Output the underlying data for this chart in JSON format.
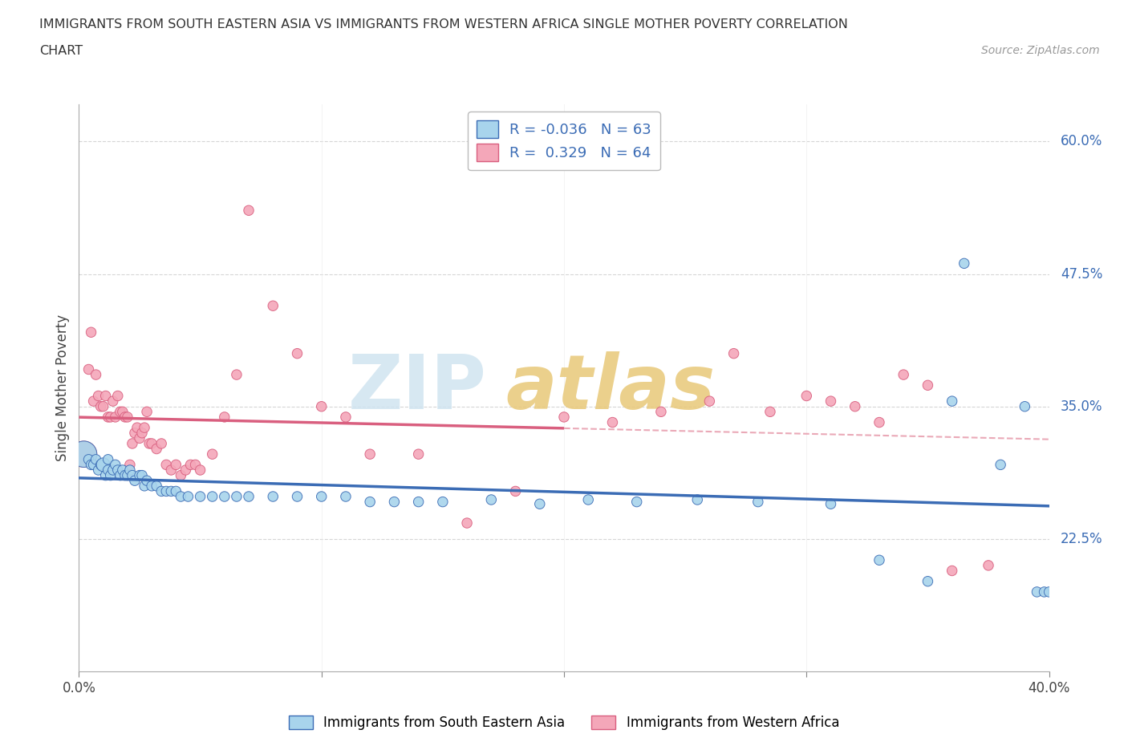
{
  "title_line1": "IMMIGRANTS FROM SOUTH EASTERN ASIA VS IMMIGRANTS FROM WESTERN AFRICA SINGLE MOTHER POVERTY CORRELATION",
  "title_line2": "CHART",
  "source": "Source: ZipAtlas.com",
  "ylabel": "Single Mother Poverty",
  "xlim": [
    0.0,
    0.4
  ],
  "ylim": [
    0.1,
    0.635
  ],
  "ytick_positions": [
    0.225,
    0.35,
    0.475,
    0.6
  ],
  "ytick_labels": [
    "22.5%",
    "35.0%",
    "47.5%",
    "60.0%"
  ],
  "R_blue": -0.036,
  "N_blue": 63,
  "R_pink": 0.329,
  "N_pink": 64,
  "color_blue": "#A8D4EC",
  "color_pink": "#F4A7B9",
  "line_blue": "#3B6CB5",
  "line_pink": "#D95F7F",
  "line_dashed_color": "#E8A0B0",
  "blue_x": [
    0.002,
    0.004,
    0.005,
    0.006,
    0.007,
    0.008,
    0.009,
    0.01,
    0.011,
    0.012,
    0.012,
    0.013,
    0.014,
    0.015,
    0.016,
    0.017,
    0.018,
    0.019,
    0.02,
    0.021,
    0.022,
    0.023,
    0.025,
    0.026,
    0.027,
    0.028,
    0.03,
    0.032,
    0.034,
    0.036,
    0.038,
    0.04,
    0.042,
    0.045,
    0.05,
    0.055,
    0.06,
    0.065,
    0.07,
    0.08,
    0.09,
    0.1,
    0.11,
    0.12,
    0.13,
    0.14,
    0.15,
    0.17,
    0.19,
    0.21,
    0.23,
    0.255,
    0.28,
    0.31,
    0.33,
    0.35,
    0.36,
    0.365,
    0.38,
    0.39,
    0.395,
    0.398,
    0.4
  ],
  "blue_y": [
    0.305,
    0.3,
    0.295,
    0.295,
    0.3,
    0.29,
    0.295,
    0.295,
    0.285,
    0.29,
    0.3,
    0.285,
    0.29,
    0.295,
    0.29,
    0.285,
    0.29,
    0.285,
    0.285,
    0.29,
    0.285,
    0.28,
    0.285,
    0.285,
    0.275,
    0.28,
    0.275,
    0.275,
    0.27,
    0.27,
    0.27,
    0.27,
    0.265,
    0.265,
    0.265,
    0.265,
    0.265,
    0.265,
    0.265,
    0.265,
    0.265,
    0.265,
    0.265,
    0.26,
    0.26,
    0.26,
    0.26,
    0.262,
    0.258,
    0.262,
    0.26,
    0.262,
    0.26,
    0.258,
    0.205,
    0.185,
    0.355,
    0.485,
    0.295,
    0.35,
    0.175,
    0.175,
    0.175
  ],
  "blue_size": [
    550,
    80,
    80,
    80,
    80,
    80,
    80,
    150,
    80,
    80,
    80,
    80,
    80,
    80,
    80,
    80,
    80,
    80,
    80,
    80,
    80,
    80,
    80,
    80,
    80,
    80,
    80,
    80,
    80,
    80,
    80,
    80,
    80,
    80,
    80,
    80,
    80,
    80,
    80,
    80,
    80,
    80,
    80,
    80,
    80,
    80,
    80,
    80,
    80,
    80,
    80,
    80,
    80,
    80,
    80,
    80,
    80,
    80,
    80,
    80,
    80,
    80,
    80
  ],
  "pink_x": [
    0.002,
    0.004,
    0.005,
    0.006,
    0.007,
    0.008,
    0.009,
    0.01,
    0.011,
    0.012,
    0.013,
    0.014,
    0.015,
    0.016,
    0.017,
    0.018,
    0.019,
    0.02,
    0.021,
    0.022,
    0.023,
    0.024,
    0.025,
    0.026,
    0.027,
    0.028,
    0.029,
    0.03,
    0.032,
    0.034,
    0.036,
    0.038,
    0.04,
    0.042,
    0.044,
    0.046,
    0.048,
    0.05,
    0.055,
    0.06,
    0.065,
    0.07,
    0.08,
    0.09,
    0.1,
    0.11,
    0.12,
    0.14,
    0.16,
    0.18,
    0.2,
    0.22,
    0.24,
    0.26,
    0.27,
    0.285,
    0.3,
    0.31,
    0.32,
    0.33,
    0.34,
    0.35,
    0.36,
    0.375
  ],
  "pink_y": [
    0.305,
    0.385,
    0.42,
    0.355,
    0.38,
    0.36,
    0.35,
    0.35,
    0.36,
    0.34,
    0.34,
    0.355,
    0.34,
    0.36,
    0.345,
    0.345,
    0.34,
    0.34,
    0.295,
    0.315,
    0.325,
    0.33,
    0.32,
    0.325,
    0.33,
    0.345,
    0.315,
    0.315,
    0.31,
    0.315,
    0.295,
    0.29,
    0.295,
    0.285,
    0.29,
    0.295,
    0.295,
    0.29,
    0.305,
    0.34,
    0.38,
    0.535,
    0.445,
    0.4,
    0.35,
    0.34,
    0.305,
    0.305,
    0.24,
    0.27,
    0.34,
    0.335,
    0.345,
    0.355,
    0.4,
    0.345,
    0.36,
    0.355,
    0.35,
    0.335,
    0.38,
    0.37,
    0.195,
    0.2
  ],
  "pink_size": [
    550,
    80,
    80,
    80,
    80,
    80,
    80,
    80,
    80,
    80,
    80,
    80,
    80,
    80,
    80,
    80,
    80,
    80,
    80,
    80,
    80,
    80,
    80,
    80,
    80,
    80,
    80,
    80,
    80,
    80,
    80,
    80,
    80,
    80,
    80,
    80,
    80,
    80,
    80,
    80,
    80,
    80,
    80,
    80,
    80,
    80,
    80,
    80,
    80,
    80,
    80,
    80,
    80,
    80,
    80,
    80,
    80,
    80,
    80,
    80,
    80,
    80,
    80,
    80
  ],
  "legend_label_blue": "Immigrants from South Eastern Asia",
  "legend_label_pink": "Immigrants from Western Africa",
  "pink_line_solid_end_x": 0.2,
  "pink_line_dashed_start_x": 0.2
}
